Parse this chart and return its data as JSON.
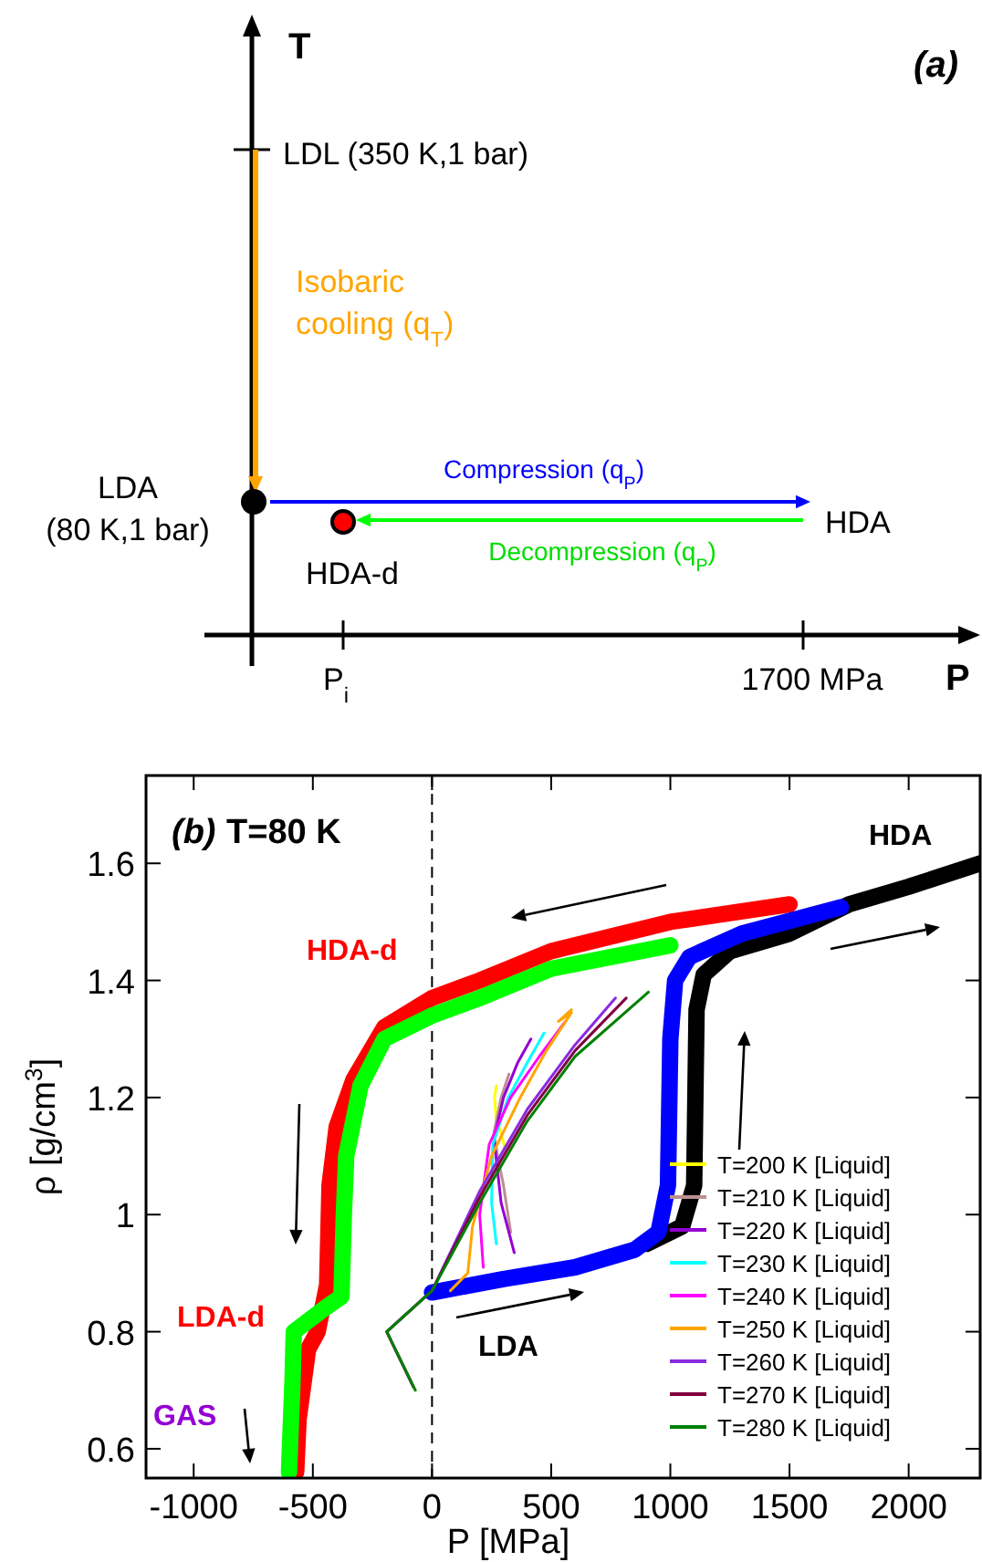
{
  "chart_data": [
    {
      "type": "other",
      "title": "(a)",
      "xlabel": "P",
      "ylabel": "T",
      "annotations": [
        "LDL (350 K,1 bar)",
        "Isobaric cooling (q$_{T}$)",
        "LDA",
        "(80 K,1 bar)",
        "Compression (q$_{P}$)",
        "Decompression (q$_{P}$)",
        "HDA",
        "HDA-d",
        "P$_{i}$",
        "1700 MPa"
      ]
    },
    {
      "type": "line",
      "xlabel": "P [MPa]",
      "ylabel": "ρ [g/cm$^{3}$]",
      "xlim": [
        -1200,
        2300
      ],
      "ylim": [
        0.55,
        1.75
      ],
      "xticks": [
        -1000,
        -500,
        0,
        500,
        1000,
        1500,
        2000
      ],
      "yticks": [
        {
          "value": 0.6,
          "label": "0.6"
        },
        {
          "value": 0.8,
          "label": "0.8"
        },
        1,
        {
          "value": 1.2,
          "label": "1.2"
        },
        {
          "value": 1.4,
          "label": "1.4"
        },
        {
          "value": 1.6,
          "label": "1.6"
        }
      ],
      "grid": false,
      "legend": "bottom right",
      "line_style": "solid",
      "marker": "none",
      "ref_lines": [
        {
          "axis": "x",
          "value": 0,
          "line_style": "dashed",
          "color": "#000000"
        }
      ],
      "annotations": [
        "(b)",
        "T=80 K",
        "HDA",
        "HDA-d",
        "LDA-d",
        "LDA",
        "GAS"
      ],
      "series": [
        {
          "color": "#ff0000",
          "x": [
            1500,
            1000,
            500,
            200,
            0,
            -200,
            -330,
            -400,
            -430,
            -440,
            -480,
            -520,
            -560,
            -570
          ],
          "values": [
            1.53,
            1.5,
            1.45,
            1.4,
            1.37,
            1.32,
            1.23,
            1.15,
            1.05,
            0.88,
            0.8,
            0.77,
            0.65,
            0.56
          ]
        },
        {
          "color": "#00ff00",
          "x": [
            1000,
            500,
            200,
            0,
            -200,
            -300,
            -360,
            -370,
            -380,
            -450,
            -580,
            -585,
            -600
          ],
          "values": [
            1.46,
            1.42,
            1.37,
            1.34,
            1.3,
            1.22,
            1.1,
            1.0,
            0.86,
            0.84,
            0.8,
            0.72,
            0.56
          ]
        },
        {
          "color": "#000000",
          "x": [
            900,
            1050,
            1100,
            1110,
            1140,
            1250,
            1500,
            1750,
            2000,
            2300
          ],
          "values": [
            0.95,
            0.98,
            1.05,
            1.35,
            1.41,
            1.45,
            1.48,
            1.53,
            1.56,
            1.6
          ]
        },
        {
          "color": "#0000ff",
          "x": [
            0,
            300,
            600,
            850,
            950,
            990,
            1000,
            1020,
            1080,
            1300,
            1715
          ],
          "values": [
            0.867,
            0.89,
            0.91,
            0.94,
            0.97,
            1.05,
            1.3,
            1.4,
            1.44,
            1.48,
            1.525
          ]
        },
        {
          "name": "T=200 K [Liquid]",
          "color": "#ffff00",
          "x": [
            308,
            290,
            270,
            262,
            270
          ],
          "values": [
            1.11,
            1.14,
            1.16,
            1.2,
            1.22
          ]
        },
        {
          "name": "T=210 K [Liquid]",
          "color": "#bc8f8f",
          "x": [
            330,
            300,
            275,
            260,
            290,
            323
          ],
          "values": [
            0.97,
            1.05,
            1.1,
            1.14,
            1.2,
            1.24
          ]
        },
        {
          "name": "T=220 K [Liquid]",
          "color": "#9400d3",
          "x": [
            345,
            290,
            260,
            300,
            360,
            415
          ],
          "values": [
            0.935,
            1.02,
            1.13,
            1.2,
            1.26,
            1.3
          ]
        },
        {
          "name": "T=230 K [Liquid]",
          "color": "#00ffff",
          "x": [
            270,
            250,
            255,
            320,
            400,
            470
          ],
          "values": [
            0.95,
            1.02,
            1.12,
            1.2,
            1.26,
            1.31
          ]
        },
        {
          "name": "T=240 K [Liquid]",
          "color": "#ff00ff",
          "x": [
            215,
            200,
            240,
            330,
            450,
            560
          ],
          "values": [
            0.91,
            1.0,
            1.12,
            1.2,
            1.27,
            1.33
          ]
        },
        {
          "name": "T=250 K [Liquid]",
          "color": "#ffa500",
          "x": [
            77,
            150,
            170,
            250,
            370,
            480,
            585,
            530,
            585
          ],
          "values": [
            0.87,
            0.9,
            0.98,
            1.1,
            1.2,
            1.28,
            1.345,
            1.33,
            1.35
          ]
        },
        {
          "name": "T=260 K [Liquid]",
          "color": "#8a2be2",
          "x": [
            -77,
            -190,
            0,
            200,
            400,
            600,
            770
          ],
          "values": [
            0.705,
            0.8,
            0.87,
            1.04,
            1.18,
            1.29,
            1.37
          ]
        },
        {
          "name": "T=270 K [Liquid]",
          "color": "#800040",
          "x": [
            -77,
            -190,
            0,
            200,
            400,
            600,
            815
          ],
          "values": [
            0.705,
            0.8,
            0.87,
            1.03,
            1.17,
            1.28,
            1.37
          ]
        },
        {
          "name": "T=280 K [Liquid]",
          "color": "#008000",
          "x": [
            -70,
            -190,
            0,
            200,
            400,
            600,
            908
          ],
          "values": [
            0.7,
            0.8,
            0.87,
            1.02,
            1.16,
            1.27,
            1.38
          ]
        }
      ]
    }
  ]
}
